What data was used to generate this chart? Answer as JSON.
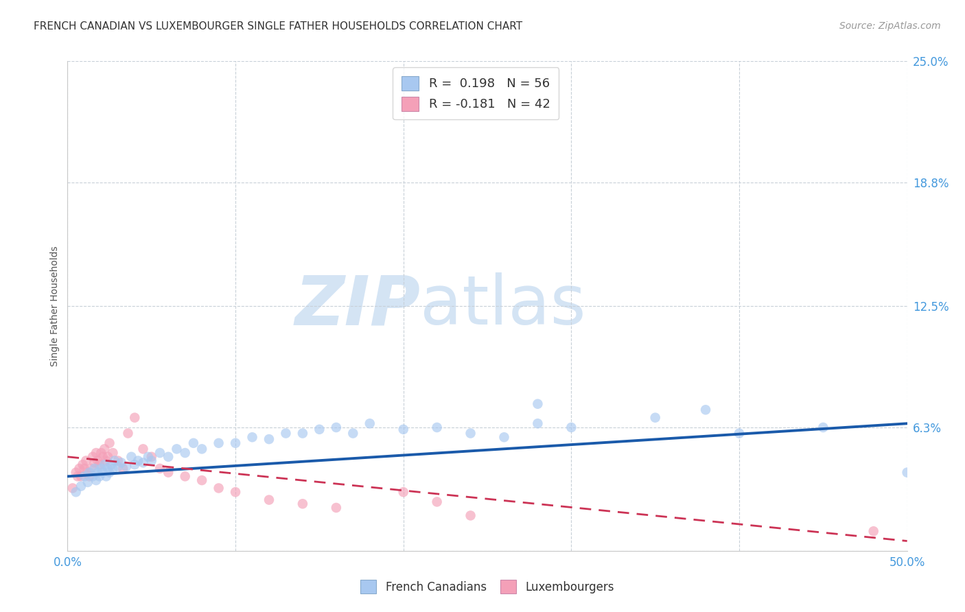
{
  "title": "FRENCH CANADIAN VS LUXEMBOURGER SINGLE FATHER HOUSEHOLDS CORRELATION CHART",
  "source": "Source: ZipAtlas.com",
  "ylabel": "Single Father Households",
  "xlim": [
    0.0,
    0.5
  ],
  "ylim": [
    0.0,
    0.25
  ],
  "yticks": [
    0.0,
    0.063,
    0.125,
    0.188,
    0.25
  ],
  "ytick_labels": [
    "",
    "6.3%",
    "12.5%",
    "18.8%",
    "25.0%"
  ],
  "xticks": [
    0.0,
    0.1,
    0.2,
    0.3,
    0.4,
    0.5
  ],
  "xtick_labels": [
    "0.0%",
    "",
    "",
    "",
    "",
    "50.0%"
  ],
  "r_blue": 0.198,
  "n_blue": 56,
  "r_pink": -0.181,
  "n_pink": 42,
  "blue_color": "#A8C8F0",
  "pink_color": "#F4A0B8",
  "blue_line_color": "#1A5AAA",
  "pink_line_color": "#CC3355",
  "watermark_zip": "ZIP",
  "watermark_atlas": "atlas",
  "watermark_color": "#D4E4F4",
  "background_color": "#FFFFFF",
  "grid_color": "#C8D0D8",
  "tick_color": "#4499DD",
  "blue_scatter_x": [
    0.005,
    0.008,
    0.01,
    0.012,
    0.013,
    0.015,
    0.016,
    0.017,
    0.018,
    0.019,
    0.02,
    0.021,
    0.022,
    0.023,
    0.024,
    0.025,
    0.026,
    0.027,
    0.028,
    0.03,
    0.032,
    0.035,
    0.038,
    0.04,
    0.042,
    0.045,
    0.048,
    0.05,
    0.055,
    0.06,
    0.065,
    0.07,
    0.075,
    0.08,
    0.09,
    0.1,
    0.11,
    0.12,
    0.13,
    0.14,
    0.15,
    0.16,
    0.17,
    0.18,
    0.2,
    0.22,
    0.24,
    0.26,
    0.28,
    0.3,
    0.35,
    0.4,
    0.45,
    0.5,
    0.28,
    0.38
  ],
  "blue_scatter_y": [
    0.03,
    0.033,
    0.038,
    0.035,
    0.04,
    0.038,
    0.042,
    0.036,
    0.04,
    0.038,
    0.042,
    0.04,
    0.044,
    0.038,
    0.042,
    0.04,
    0.044,
    0.042,
    0.046,
    0.043,
    0.045,
    0.043,
    0.048,
    0.044,
    0.046,
    0.045,
    0.048,
    0.046,
    0.05,
    0.048,
    0.052,
    0.05,
    0.055,
    0.052,
    0.055,
    0.055,
    0.058,
    0.057,
    0.06,
    0.06,
    0.062,
    0.063,
    0.06,
    0.065,
    0.062,
    0.063,
    0.06,
    0.058,
    0.065,
    0.063,
    0.068,
    0.06,
    0.063,
    0.04,
    0.075,
    0.072
  ],
  "pink_scatter_x": [
    0.003,
    0.005,
    0.006,
    0.007,
    0.008,
    0.009,
    0.01,
    0.011,
    0.012,
    0.013,
    0.014,
    0.015,
    0.016,
    0.017,
    0.018,
    0.019,
    0.02,
    0.021,
    0.022,
    0.023,
    0.024,
    0.025,
    0.027,
    0.03,
    0.033,
    0.036,
    0.04,
    0.045,
    0.05,
    0.055,
    0.06,
    0.07,
    0.08,
    0.09,
    0.1,
    0.12,
    0.14,
    0.16,
    0.2,
    0.22,
    0.24,
    0.48
  ],
  "pink_scatter_y": [
    0.032,
    0.04,
    0.038,
    0.042,
    0.038,
    0.044,
    0.042,
    0.046,
    0.04,
    0.038,
    0.042,
    0.048,
    0.045,
    0.05,
    0.046,
    0.044,
    0.05,
    0.048,
    0.052,
    0.046,
    0.048,
    0.055,
    0.05,
    0.046,
    0.042,
    0.06,
    0.068,
    0.052,
    0.048,
    0.042,
    0.04,
    0.038,
    0.036,
    0.032,
    0.03,
    0.026,
    0.024,
    0.022,
    0.03,
    0.025,
    0.018,
    0.01
  ],
  "blue_trend_start_y": 0.038,
  "blue_trend_end_y": 0.065,
  "pink_trend_start_y": 0.048,
  "pink_trend_end_y": 0.005
}
